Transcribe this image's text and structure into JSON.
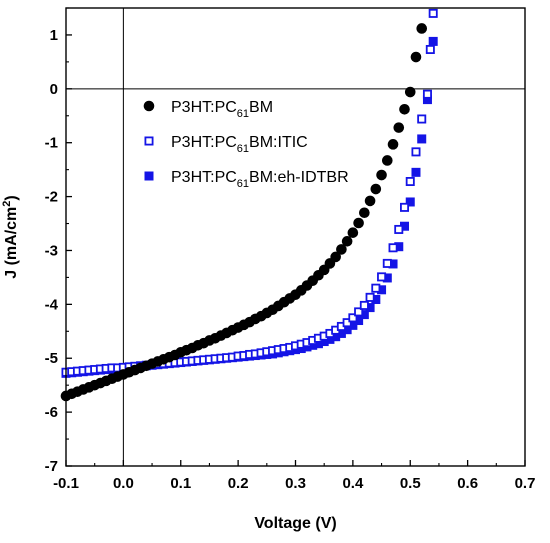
{
  "chart_data": {
    "type": "scatter",
    "xlabel": "Voltage (V)",
    "ylabel_main": "J (mA/cm",
    "ylabel_sup": "2",
    "ylabel_tail": ")",
    "xlim": [
      -0.1,
      0.7
    ],
    "ylim": [
      -7,
      1.5
    ],
    "x_ticks": [
      -0.1,
      0.0,
      0.1,
      0.2,
      0.3,
      0.4,
      0.5,
      0.6,
      0.7
    ],
    "x_tick_labels": [
      "-0.1",
      "0.0",
      "0.1",
      "0.2",
      "0.3",
      "0.4",
      "0.5",
      "0.6",
      "0.7"
    ],
    "y_ticks": [
      -7,
      -6,
      -5,
      -4,
      -3,
      -2,
      -1,
      0,
      1
    ],
    "y_tick_labels": [
      "-7",
      "-6",
      "-5",
      "-4",
      "-3",
      "-2",
      "-1",
      "0",
      "1"
    ],
    "zero_lines": true,
    "grid": false,
    "legend_placement": "top-left",
    "series": [
      {
        "marker": "filled-circle",
        "color": "#000000",
        "legend_parts": [
          "P3HT:PC",
          "61",
          "BM"
        ],
        "points": [
          [
            -0.1,
            -5.7
          ],
          [
            -0.09,
            -5.66
          ],
          [
            -0.08,
            -5.62
          ],
          [
            -0.07,
            -5.58
          ],
          [
            -0.06,
            -5.54
          ],
          [
            -0.05,
            -5.5
          ],
          [
            -0.04,
            -5.46
          ],
          [
            -0.03,
            -5.42
          ],
          [
            -0.02,
            -5.38
          ],
          [
            -0.01,
            -5.34
          ],
          [
            0.0,
            -5.3
          ],
          [
            0.01,
            -5.26
          ],
          [
            0.02,
            -5.22
          ],
          [
            0.03,
            -5.18
          ],
          [
            0.04,
            -5.14
          ],
          [
            0.05,
            -5.1
          ],
          [
            0.06,
            -5.06
          ],
          [
            0.07,
            -5.02
          ],
          [
            0.08,
            -4.98
          ],
          [
            0.09,
            -4.94
          ],
          [
            0.1,
            -4.89
          ],
          [
            0.11,
            -4.85
          ],
          [
            0.12,
            -4.81
          ],
          [
            0.13,
            -4.76
          ],
          [
            0.14,
            -4.72
          ],
          [
            0.15,
            -4.67
          ],
          [
            0.16,
            -4.63
          ],
          [
            0.17,
            -4.58
          ],
          [
            0.18,
            -4.53
          ],
          [
            0.19,
            -4.48
          ],
          [
            0.2,
            -4.43
          ],
          [
            0.21,
            -4.38
          ],
          [
            0.22,
            -4.33
          ],
          [
            0.23,
            -4.27
          ],
          [
            0.24,
            -4.22
          ],
          [
            0.25,
            -4.16
          ],
          [
            0.26,
            -4.1
          ],
          [
            0.27,
            -4.03
          ],
          [
            0.28,
            -3.96
          ],
          [
            0.29,
            -3.89
          ],
          [
            0.3,
            -3.82
          ],
          [
            0.31,
            -3.74
          ],
          [
            0.32,
            -3.65
          ],
          [
            0.33,
            -3.56
          ],
          [
            0.34,
            -3.46
          ],
          [
            0.35,
            -3.36
          ],
          [
            0.36,
            -3.24
          ],
          [
            0.37,
            -3.12
          ],
          [
            0.38,
            -2.98
          ],
          [
            0.39,
            -2.83
          ],
          [
            0.4,
            -2.67
          ],
          [
            0.41,
            -2.49
          ],
          [
            0.42,
            -2.3
          ],
          [
            0.43,
            -2.08
          ],
          [
            0.44,
            -1.86
          ],
          [
            0.45,
            -1.6
          ],
          [
            0.46,
            -1.33
          ],
          [
            0.47,
            -1.03
          ],
          [
            0.48,
            -0.72
          ],
          [
            0.49,
            -0.38
          ],
          [
            0.5,
            -0.06
          ],
          [
            0.51,
            0.59
          ],
          [
            0.52,
            1.12
          ]
        ]
      },
      {
        "marker": "open-square",
        "color": "#1414e6",
        "legend_parts": [
          "P3HT:PC",
          "61",
          "BM:ITIC"
        ],
        "points": [
          [
            -0.1,
            -5.26
          ],
          [
            -0.09,
            -5.25
          ],
          [
            -0.08,
            -5.24
          ],
          [
            -0.07,
            -5.23
          ],
          [
            -0.06,
            -5.22
          ],
          [
            -0.05,
            -5.21
          ],
          [
            -0.04,
            -5.2
          ],
          [
            -0.03,
            -5.19
          ],
          [
            -0.02,
            -5.18
          ],
          [
            -0.01,
            -5.18
          ],
          [
            0.0,
            -5.17
          ],
          [
            0.01,
            -5.16
          ],
          [
            0.02,
            -5.15
          ],
          [
            0.03,
            -5.14
          ],
          [
            0.04,
            -5.13
          ],
          [
            0.05,
            -5.12
          ],
          [
            0.06,
            -5.11
          ],
          [
            0.07,
            -5.1
          ],
          [
            0.08,
            -5.09
          ],
          [
            0.09,
            -5.08
          ],
          [
            0.1,
            -5.07
          ],
          [
            0.11,
            -5.06
          ],
          [
            0.12,
            -5.05
          ],
          [
            0.13,
            -5.04
          ],
          [
            0.14,
            -5.03
          ],
          [
            0.15,
            -5.02
          ],
          [
            0.16,
            -5.01
          ],
          [
            0.17,
            -5.0
          ],
          [
            0.18,
            -4.99
          ],
          [
            0.19,
            -4.98
          ],
          [
            0.2,
            -4.96
          ],
          [
            0.21,
            -4.95
          ],
          [
            0.22,
            -4.93
          ],
          [
            0.23,
            -4.92
          ],
          [
            0.24,
            -4.9
          ],
          [
            0.25,
            -4.88
          ],
          [
            0.26,
            -4.86
          ],
          [
            0.27,
            -4.84
          ],
          [
            0.28,
            -4.82
          ],
          [
            0.29,
            -4.8
          ],
          [
            0.3,
            -4.77
          ],
          [
            0.31,
            -4.74
          ],
          [
            0.32,
            -4.71
          ],
          [
            0.33,
            -4.67
          ],
          [
            0.34,
            -4.63
          ],
          [
            0.35,
            -4.59
          ],
          [
            0.36,
            -4.54
          ],
          [
            0.37,
            -4.48
          ],
          [
            0.38,
            -4.41
          ],
          [
            0.39,
            -4.34
          ],
          [
            0.4,
            -4.25
          ],
          [
            0.41,
            -4.14
          ],
          [
            0.42,
            -4.02
          ],
          [
            0.43,
            -3.87
          ],
          [
            0.44,
            -3.7
          ],
          [
            0.45,
            -3.49
          ],
          [
            0.46,
            -3.24
          ],
          [
            0.47,
            -2.95
          ],
          [
            0.48,
            -2.61
          ],
          [
            0.49,
            -2.2
          ],
          [
            0.5,
            -1.72
          ],
          [
            0.51,
            -1.17
          ],
          [
            0.52,
            -0.56
          ],
          [
            0.53,
            -0.1
          ],
          [
            0.535,
            0.73
          ],
          [
            0.54,
            1.4
          ]
        ]
      },
      {
        "marker": "filled-square",
        "color": "#1414e6",
        "legend_parts": [
          "P3HT:PC",
          "61",
          "BM:eh-IDTBR"
        ],
        "points": [
          [
            -0.1,
            -5.28
          ],
          [
            -0.09,
            -5.27
          ],
          [
            -0.08,
            -5.26
          ],
          [
            -0.07,
            -5.25
          ],
          [
            -0.06,
            -5.24
          ],
          [
            -0.05,
            -5.23
          ],
          [
            -0.04,
            -5.22
          ],
          [
            -0.03,
            -5.21
          ],
          [
            -0.02,
            -5.2
          ],
          [
            -0.01,
            -5.19
          ],
          [
            0.0,
            -5.18
          ],
          [
            0.01,
            -5.17
          ],
          [
            0.02,
            -5.16
          ],
          [
            0.03,
            -5.15
          ],
          [
            0.04,
            -5.14
          ],
          [
            0.05,
            -5.13
          ],
          [
            0.06,
            -5.12
          ],
          [
            0.07,
            -5.11
          ],
          [
            0.08,
            -5.1
          ],
          [
            0.09,
            -5.09
          ],
          [
            0.1,
            -5.08
          ],
          [
            0.11,
            -5.07
          ],
          [
            0.12,
            -5.06
          ],
          [
            0.13,
            -5.05
          ],
          [
            0.14,
            -5.04
          ],
          [
            0.15,
            -5.03
          ],
          [
            0.16,
            -5.02
          ],
          [
            0.17,
            -5.01
          ],
          [
            0.18,
            -5.0
          ],
          [
            0.19,
            -4.99
          ],
          [
            0.2,
            -4.98
          ],
          [
            0.21,
            -4.97
          ],
          [
            0.22,
            -4.96
          ],
          [
            0.23,
            -4.95
          ],
          [
            0.24,
            -4.94
          ],
          [
            0.25,
            -4.93
          ],
          [
            0.26,
            -4.92
          ],
          [
            0.27,
            -4.9
          ],
          [
            0.28,
            -4.88
          ],
          [
            0.29,
            -4.86
          ],
          [
            0.3,
            -4.84
          ],
          [
            0.31,
            -4.82
          ],
          [
            0.32,
            -4.79
          ],
          [
            0.33,
            -4.76
          ],
          [
            0.34,
            -4.73
          ],
          [
            0.35,
            -4.69
          ],
          [
            0.36,
            -4.65
          ],
          [
            0.37,
            -4.6
          ],
          [
            0.38,
            -4.54
          ],
          [
            0.39,
            -4.47
          ],
          [
            0.4,
            -4.39
          ],
          [
            0.41,
            -4.3
          ],
          [
            0.42,
            -4.19
          ],
          [
            0.43,
            -4.06
          ],
          [
            0.44,
            -3.91
          ],
          [
            0.45,
            -3.73
          ],
          [
            0.46,
            -3.51
          ],
          [
            0.47,
            -3.25
          ],
          [
            0.48,
            -2.93
          ],
          [
            0.49,
            -2.55
          ],
          [
            0.5,
            -2.1
          ],
          [
            0.51,
            -1.55
          ],
          [
            0.52,
            -0.93
          ],
          [
            0.53,
            -0.2
          ],
          [
            0.54,
            0.88
          ]
        ]
      }
    ]
  }
}
